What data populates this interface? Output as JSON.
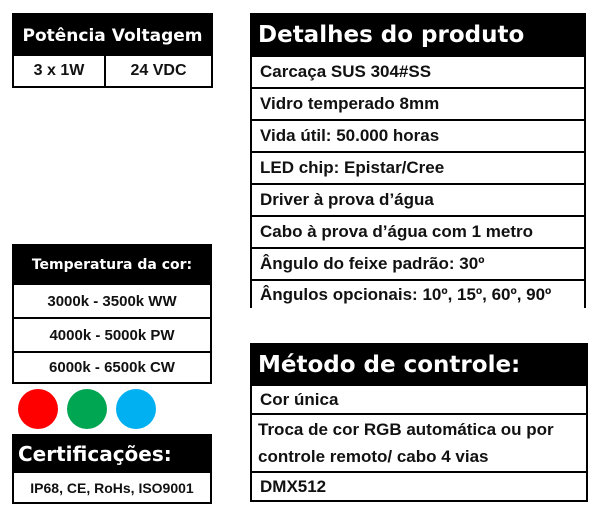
{
  "power_table": {
    "headers": [
      "Potência",
      "Voltagem"
    ],
    "values": [
      "3 x 1W",
      "24 VDC"
    ]
  },
  "temperature": {
    "title": "Temperatura da cor:",
    "rows": [
      "3000k - 3500k WW",
      "4000k - 5000k PW",
      "6000k - 6500k CW"
    ]
  },
  "color_dots": {
    "colors": [
      "#ff0000",
      "#00a651",
      "#00b0f0"
    ],
    "icons": [
      "red-dot-icon",
      "green-dot-icon",
      "blue-dot-icon",
      "rgb-mix-icon"
    ]
  },
  "certifications": {
    "title": "Certificações:",
    "value": "IP68, CE, RoHs, ISO9001"
  },
  "details": {
    "title": "Detalhes do produto",
    "rows": [
      "Carcaça SUS 304#SS",
      "Vidro temperado 8mm",
      "Vida útil: 50.000 horas",
      "LED chip: Epistar/Cree",
      "Driver à prova d’água",
      "Cabo à prova d’água com 1 metro",
      "Ângulo do feixe padrão: 30º",
      "Ângulos opcionais: 10º, 15º, 60º, 90º"
    ]
  },
  "control": {
    "title": "Método de controle:",
    "rows": [
      "Cor única",
      "Troca de cor RGB automática ou por controle remoto/ cabo 4 vias",
      "DMX512"
    ]
  }
}
